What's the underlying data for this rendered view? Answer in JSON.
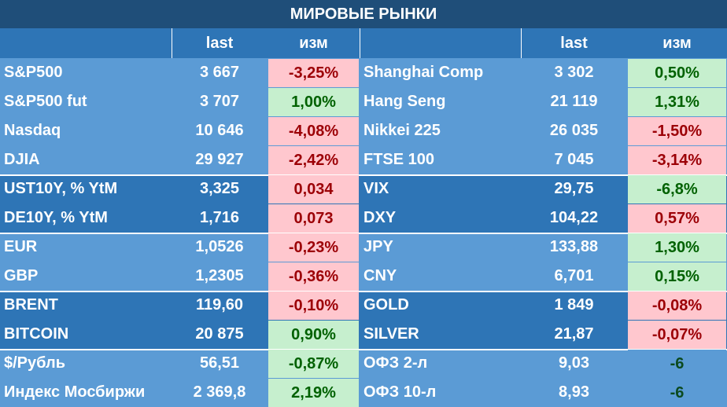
{
  "title": "МИРОВЫЕ РЫНКИ",
  "header_color": "#2e75b6",
  "title_color": "#1f4e79",
  "columns": [
    "last",
    "изм",
    "last",
    "изм"
  ],
  "groups": [
    {
      "band": "#5b9bd5",
      "rows": [
        {
          "left": {
            "name": "S&P500",
            "last": "3 667",
            "chg": "-3,25%",
            "bg": "#ffc7ce",
            "fg": "#9c0006"
          },
          "right": {
            "name": "Shanghai Comp",
            "last": "3 302",
            "chg": "0,50%",
            "bg": "#c6efce",
            "fg": "#006100"
          }
        },
        {
          "left": {
            "name": "S&P500 fut",
            "last": "3 707",
            "chg": "1,00%",
            "bg": "#c6efce",
            "fg": "#006100"
          },
          "right": {
            "name": "Hang Seng",
            "last": "21 119",
            "chg": "1,31%",
            "bg": "#c6efce",
            "fg": "#006100"
          }
        },
        {
          "left": {
            "name": "Nasdaq",
            "last": "10 646",
            "chg": "-4,08%",
            "bg": "#ffc7ce",
            "fg": "#9c0006"
          },
          "right": {
            "name": "Nikkei 225",
            "last": "26 035",
            "chg": "-1,50%",
            "bg": "#ffc7ce",
            "fg": "#9c0006"
          }
        },
        {
          "left": {
            "name": "DJIA",
            "last": "29 927",
            "chg": "-2,42%",
            "bg": "#ffc7ce",
            "fg": "#9c0006"
          },
          "right": {
            "name": "FTSE 100",
            "last": "7 045",
            "chg": "-3,14%",
            "bg": "#ffc7ce",
            "fg": "#9c0006"
          }
        }
      ]
    },
    {
      "band": "#2e75b6",
      "rows": [
        {
          "left": {
            "name": "UST10Y, % YtM",
            "last": "3,325",
            "chg": "0,034",
            "bg": "#ffc7ce",
            "fg": "#9c0006"
          },
          "right": {
            "name": "VIX",
            "last": "29,75",
            "chg": "-6,8%",
            "bg": "#c6efce",
            "fg": "#006100"
          }
        },
        {
          "left": {
            "name": "DE10Y, % YtM",
            "last": "1,716",
            "chg": "0,073",
            "bg": "#ffc7ce",
            "fg": "#9c0006"
          },
          "right": {
            "name": "DXY",
            "last": "104,22",
            "chg": "0,57%",
            "bg": "#ffc7ce",
            "fg": "#9c0006"
          }
        }
      ]
    },
    {
      "band": "#5b9bd5",
      "rows": [
        {
          "left": {
            "name": "EUR",
            "last": "1,0526",
            "chg": "-0,23%",
            "bg": "#ffc7ce",
            "fg": "#9c0006"
          },
          "right": {
            "name": "JPY",
            "last": "133,88",
            "chg": "1,30%",
            "bg": "#c6efce",
            "fg": "#006100"
          }
        },
        {
          "left": {
            "name": "GBP",
            "last": "1,2305",
            "chg": "-0,36%",
            "bg": "#ffc7ce",
            "fg": "#9c0006"
          },
          "right": {
            "name": "CNY",
            "last": "6,701",
            "chg": "0,15%",
            "bg": "#c6efce",
            "fg": "#006100"
          }
        }
      ]
    },
    {
      "band": "#2e75b6",
      "rows": [
        {
          "left": {
            "name": "BRENT",
            "last": "119,60",
            "chg": "-0,10%",
            "bg": "#ffc7ce",
            "fg": "#9c0006"
          },
          "right": {
            "name": "GOLD",
            "last": "1 849",
            "chg": "-0,08%",
            "bg": "#ffc7ce",
            "fg": "#9c0006"
          }
        },
        {
          "left": {
            "name": "BITCOIN",
            "last": "20 875",
            "chg": "0,90%",
            "bg": "#c6efce",
            "fg": "#006100"
          },
          "right": {
            "name": "SILVER",
            "last": "21,87",
            "chg": "-0,07%",
            "bg": "#ffc7ce",
            "fg": "#9c0006"
          }
        }
      ]
    },
    {
      "band": "#5b9bd5",
      "rows": [
        {
          "left": {
            "name": "$/Рубль",
            "last": "56,51",
            "chg": "-0,87%",
            "bg": "#c6efce",
            "fg": "#006100"
          },
          "right": {
            "name": "ОФЗ 2-л",
            "last": "9,03",
            "chg": "-6",
            "bg": "#5b9bd5",
            "fg": "#0b4a1f"
          }
        },
        {
          "left": {
            "name": "Индекс Мосбиржи",
            "last": "2 369,8",
            "chg": "2,19%",
            "bg": "#c6efce",
            "fg": "#006100"
          },
          "right": {
            "name": "ОФЗ 10-л",
            "last": "8,93",
            "chg": "-6",
            "bg": "#5b9bd5",
            "fg": "#0b4a1f"
          }
        }
      ]
    }
  ]
}
